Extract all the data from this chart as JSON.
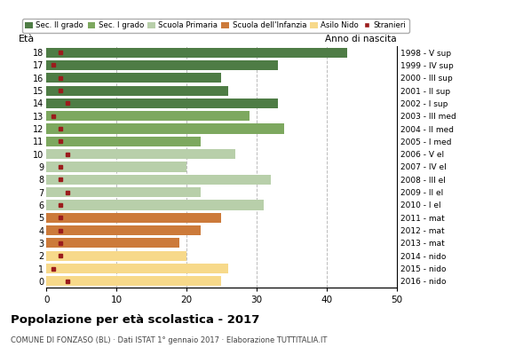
{
  "ages": [
    0,
    1,
    2,
    3,
    4,
    5,
    6,
    7,
    8,
    9,
    10,
    11,
    12,
    13,
    14,
    15,
    16,
    17,
    18
  ],
  "values": [
    25,
    26,
    20,
    19,
    22,
    25,
    31,
    22,
    32,
    20,
    27,
    22,
    34,
    29,
    33,
    26,
    25,
    33,
    43
  ],
  "stranieri": [
    3,
    1,
    2,
    2,
    2,
    2,
    2,
    3,
    2,
    2,
    3,
    2,
    2,
    1,
    3,
    2,
    2,
    1,
    2
  ],
  "anno_nascita": [
    "2016 - nido",
    "2015 - nido",
    "2014 - nido",
    "2013 - mat",
    "2012 - mat",
    "2011 - mat",
    "2010 - I el",
    "2009 - II el",
    "2008 - III el",
    "2007 - IV el",
    "2006 - V el",
    "2005 - I med",
    "2004 - II med",
    "2003 - III med",
    "2002 - I sup",
    "2001 - II sup",
    "2000 - III sup",
    "1999 - IV sup",
    "1998 - V sup"
  ],
  "bar_colors": [
    "#f7d98a",
    "#f7d98a",
    "#f7d98a",
    "#cc7a3a",
    "#cc7a3a",
    "#cc7a3a",
    "#b8cfaa",
    "#b8cfaa",
    "#b8cfaa",
    "#b8cfaa",
    "#b8cfaa",
    "#7da85f",
    "#7da85f",
    "#7da85f",
    "#4e7c45",
    "#4e7c45",
    "#4e7c45",
    "#4e7c45",
    "#4e7c45"
  ],
  "legend_labels": [
    "Sec. II grado",
    "Sec. I grado",
    "Scuola Primaria",
    "Scuola dell'Infanzia",
    "Asilo Nido",
    "Stranieri"
  ],
  "legend_colors": [
    "#4e7c45",
    "#7da85f",
    "#b8cfaa",
    "#cc7a3a",
    "#f7d98a",
    "#9b1c1c"
  ],
  "stranieri_color": "#9b1c1c",
  "title": "Popolazione per età scolastica - 2017",
  "subtitle": "COMUNE DI FONZASO (BL) · Dati ISTAT 1° gennaio 2017 · Elaborazione TUTTITALIA.IT",
  "label_eta": "Età",
  "label_anno": "Anno di nascita",
  "xlim": [
    0,
    50
  ],
  "xticks": [
    0,
    10,
    20,
    30,
    40,
    50
  ],
  "background_color": "#ffffff",
  "grid_color": "#bbbbbb"
}
